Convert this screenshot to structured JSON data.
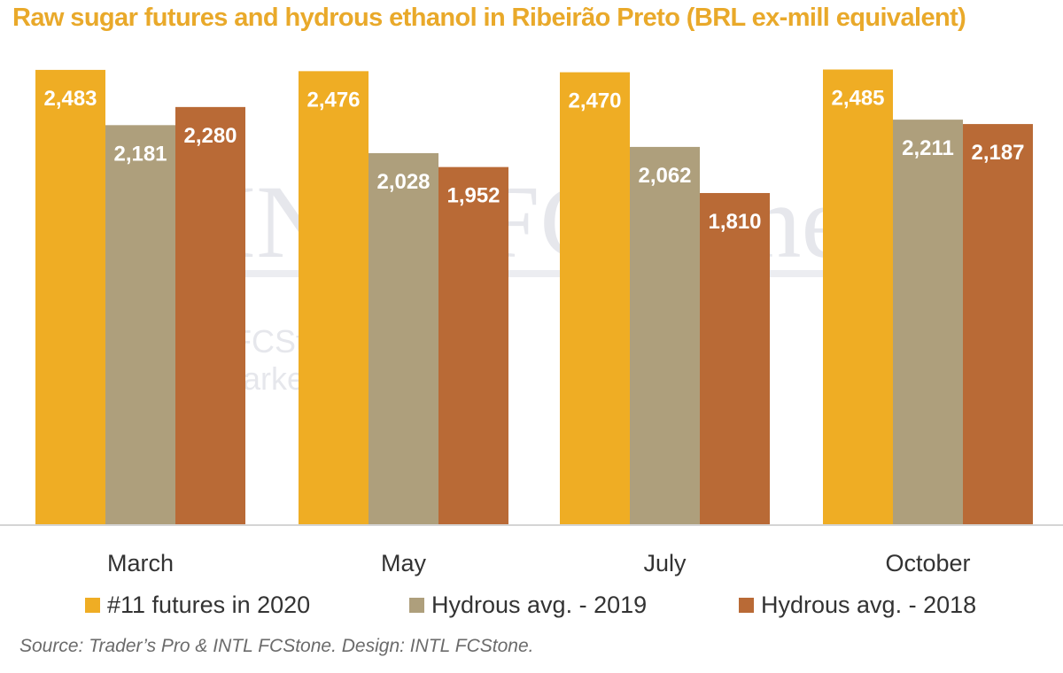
{
  "chart_data": {
    "type": "bar",
    "title": "Raw sugar futures and hydrous ethanol in Ribeirão Preto (BRL ex-mill equivalent)",
    "categories": [
      "March",
      "May",
      "July",
      "October"
    ],
    "series": [
      {
        "name": "#11 futures in 2020",
        "color": "#efad24",
        "values": [
          2483,
          2476,
          2470,
          2485
        ]
      },
      {
        "name": "Hydrous avg. - 2019",
        "color": "#ae9f7c",
        "values": [
          2181,
          2028,
          2062,
          2211
        ]
      },
      {
        "name": "Hydrous avg. - 2018",
        "color": "#b96a36",
        "values": [
          2280,
          1952,
          1810,
          2187
        ]
      }
    ],
    "ylim": [
      0,
      2560
    ],
    "data_labels": [
      [
        "2,483",
        "2,181",
        "2,280"
      ],
      [
        "2,476",
        "2,028",
        "1,952"
      ],
      [
        "2,470",
        "2,062",
        "1,810"
      ],
      [
        "2,485",
        "2,211",
        "2,187"
      ]
    ],
    "grid": false,
    "legend": "bottom",
    "source": "Source: Trader’s Pro & INTL FCStone. Design: INTL FCStone."
  },
  "watermark": {
    "logo_text": "INTL FCStone",
    "line1": "FCStone Ltd",
    "line2": "arke"
  }
}
